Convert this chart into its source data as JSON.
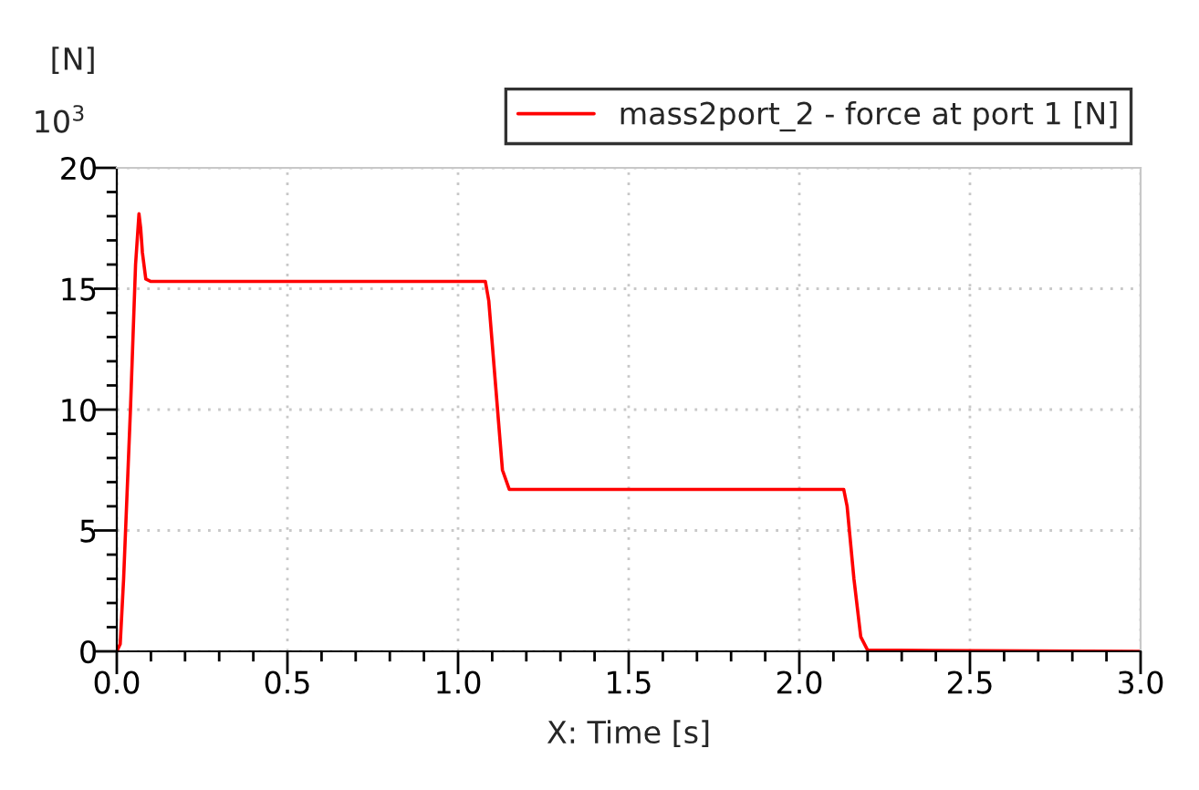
{
  "chart_data": {
    "type": "line",
    "xlabel": "X: Time [s]",
    "ylabel": "[N]",
    "annotations": [
      "10$^{3}$"
    ],
    "series": [
      {
        "name": "mass2port_2 - force at port 1 [N]",
        "color": "#ff0000",
        "x": [
          0,
          0.01,
          0.02,
          0.04,
          0.055,
          0.065,
          0.07,
          0.075,
          0.085,
          0.1,
          1.08,
          1.09,
          1.11,
          1.13,
          1.15,
          2.13,
          2.14,
          2.16,
          2.18,
          2.2,
          3.0
        ],
        "values": [
          0,
          0.3,
          3,
          10,
          16,
          18.1,
          17.5,
          16.5,
          15.4,
          15.3,
          15.3,
          14.5,
          11,
          7.5,
          6.7,
          6.7,
          6,
          3,
          0.6,
          0.05,
          0
        ]
      }
    ],
    "xlim": [
      0,
      3
    ],
    "ylim": [
      0,
      20
    ],
    "xticks": [
      {
        "value": 0,
        "label": "0.0"
      },
      {
        "value": 0.1,
        "label": null
      },
      {
        "value": 0.2,
        "label": null
      },
      {
        "value": 0.3,
        "label": null
      },
      {
        "value": 0.4,
        "label": null
      },
      {
        "value": 0.5,
        "label": "0.5"
      },
      {
        "value": 0.6,
        "label": null
      },
      {
        "value": 0.7,
        "label": null
      },
      {
        "value": 0.8,
        "label": null
      },
      {
        "value": 0.9,
        "label": null
      },
      {
        "value": 1,
        "label": "1.0"
      },
      {
        "value": 1.1,
        "label": null
      },
      {
        "value": 1.2,
        "label": null
      },
      {
        "value": 1.3,
        "label": null
      },
      {
        "value": 1.4,
        "label": null
      },
      {
        "value": 1.5,
        "label": "1.5"
      },
      {
        "value": 1.6,
        "label": null
      },
      {
        "value": 1.7,
        "label": null
      },
      {
        "value": 1.8,
        "label": null
      },
      {
        "value": 1.9,
        "label": null
      },
      {
        "value": 2,
        "label": "2.0"
      },
      {
        "value": 2.1,
        "label": null
      },
      {
        "value": 2.2,
        "label": null
      },
      {
        "value": 2.3,
        "label": null
      },
      {
        "value": 2.4,
        "label": null
      },
      {
        "value": 2.5,
        "label": "2.5"
      },
      {
        "value": 2.6,
        "label": null
      },
      {
        "value": 2.7,
        "label": null
      },
      {
        "value": 2.8,
        "label": null
      },
      {
        "value": 2.9,
        "label": null
      },
      {
        "value": 3,
        "label": "3.0"
      }
    ],
    "yticks": [
      0,
      {
        "value": 1,
        "label": null
      },
      {
        "value": 2,
        "label": null
      },
      {
        "value": 3,
        "label": null
      },
      {
        "value": 4,
        "label": null
      },
      5,
      {
        "value": 6,
        "label": null
      },
      {
        "value": 7,
        "label": null
      },
      {
        "value": 8,
        "label": null
      },
      {
        "value": 9,
        "label": null
      },
      10,
      {
        "value": 11,
        "label": null
      },
      {
        "value": 12,
        "label": null
      },
      {
        "value": 13,
        "label": null
      },
      {
        "value": 14,
        "label": null
      },
      15,
      {
        "value": 16,
        "label": null
      },
      {
        "value": 17,
        "label": null
      },
      {
        "value": 18,
        "label": null
      },
      {
        "value": 19,
        "label": null
      },
      20
    ],
    "grid": true,
    "legend": "top",
    "marker": "none",
    "line_style": "solid"
  }
}
